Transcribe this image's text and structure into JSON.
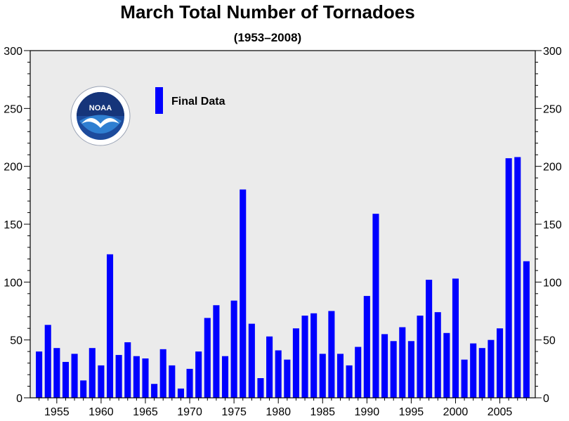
{
  "chart_data": {
    "type": "bar",
    "title": "March Total Number of Tornadoes",
    "subtitle": "(1953–2008)",
    "xlabel": "",
    "ylabel": "",
    "x": [
      1953,
      1954,
      1955,
      1956,
      1957,
      1958,
      1959,
      1960,
      1961,
      1962,
      1963,
      1964,
      1965,
      1966,
      1967,
      1968,
      1969,
      1970,
      1971,
      1972,
      1973,
      1974,
      1975,
      1976,
      1977,
      1978,
      1979,
      1980,
      1981,
      1982,
      1983,
      1984,
      1985,
      1986,
      1987,
      1988,
      1989,
      1990,
      1991,
      1992,
      1993,
      1994,
      1995,
      1996,
      1997,
      1998,
      1999,
      2000,
      2001,
      2002,
      2003,
      2004,
      2005,
      2006,
      2007,
      2008
    ],
    "series": [
      {
        "name": "Final Data",
        "color": "#0000ff",
        "values": [
          40,
          63,
          43,
          31,
          38,
          15,
          43,
          28,
          124,
          37,
          48,
          36,
          34,
          12,
          42,
          28,
          8,
          25,
          40,
          69,
          80,
          36,
          84,
          180,
          64,
          17,
          53,
          41,
          33,
          60,
          71,
          73,
          38,
          75,
          38,
          28,
          44,
          88,
          159,
          55,
          49,
          61,
          49,
          71,
          102,
          74,
          56,
          103,
          33,
          47,
          43,
          50,
          60,
          207,
          208,
          118
        ]
      }
    ],
    "ylim": [
      0,
      300
    ],
    "xlim": [
      1952,
      2009
    ],
    "y_ticks": [
      0,
      50,
      100,
      150,
      200,
      250,
      300
    ],
    "x_ticks": [
      1955,
      1960,
      1965,
      1970,
      1975,
      1980,
      1985,
      1990,
      1995,
      2000,
      2005
    ],
    "grid": false,
    "plot_background": "#ebebeb",
    "legend_position": "top-left",
    "logo": {
      "name": "noaa-logo",
      "text": "NOAA"
    }
  }
}
